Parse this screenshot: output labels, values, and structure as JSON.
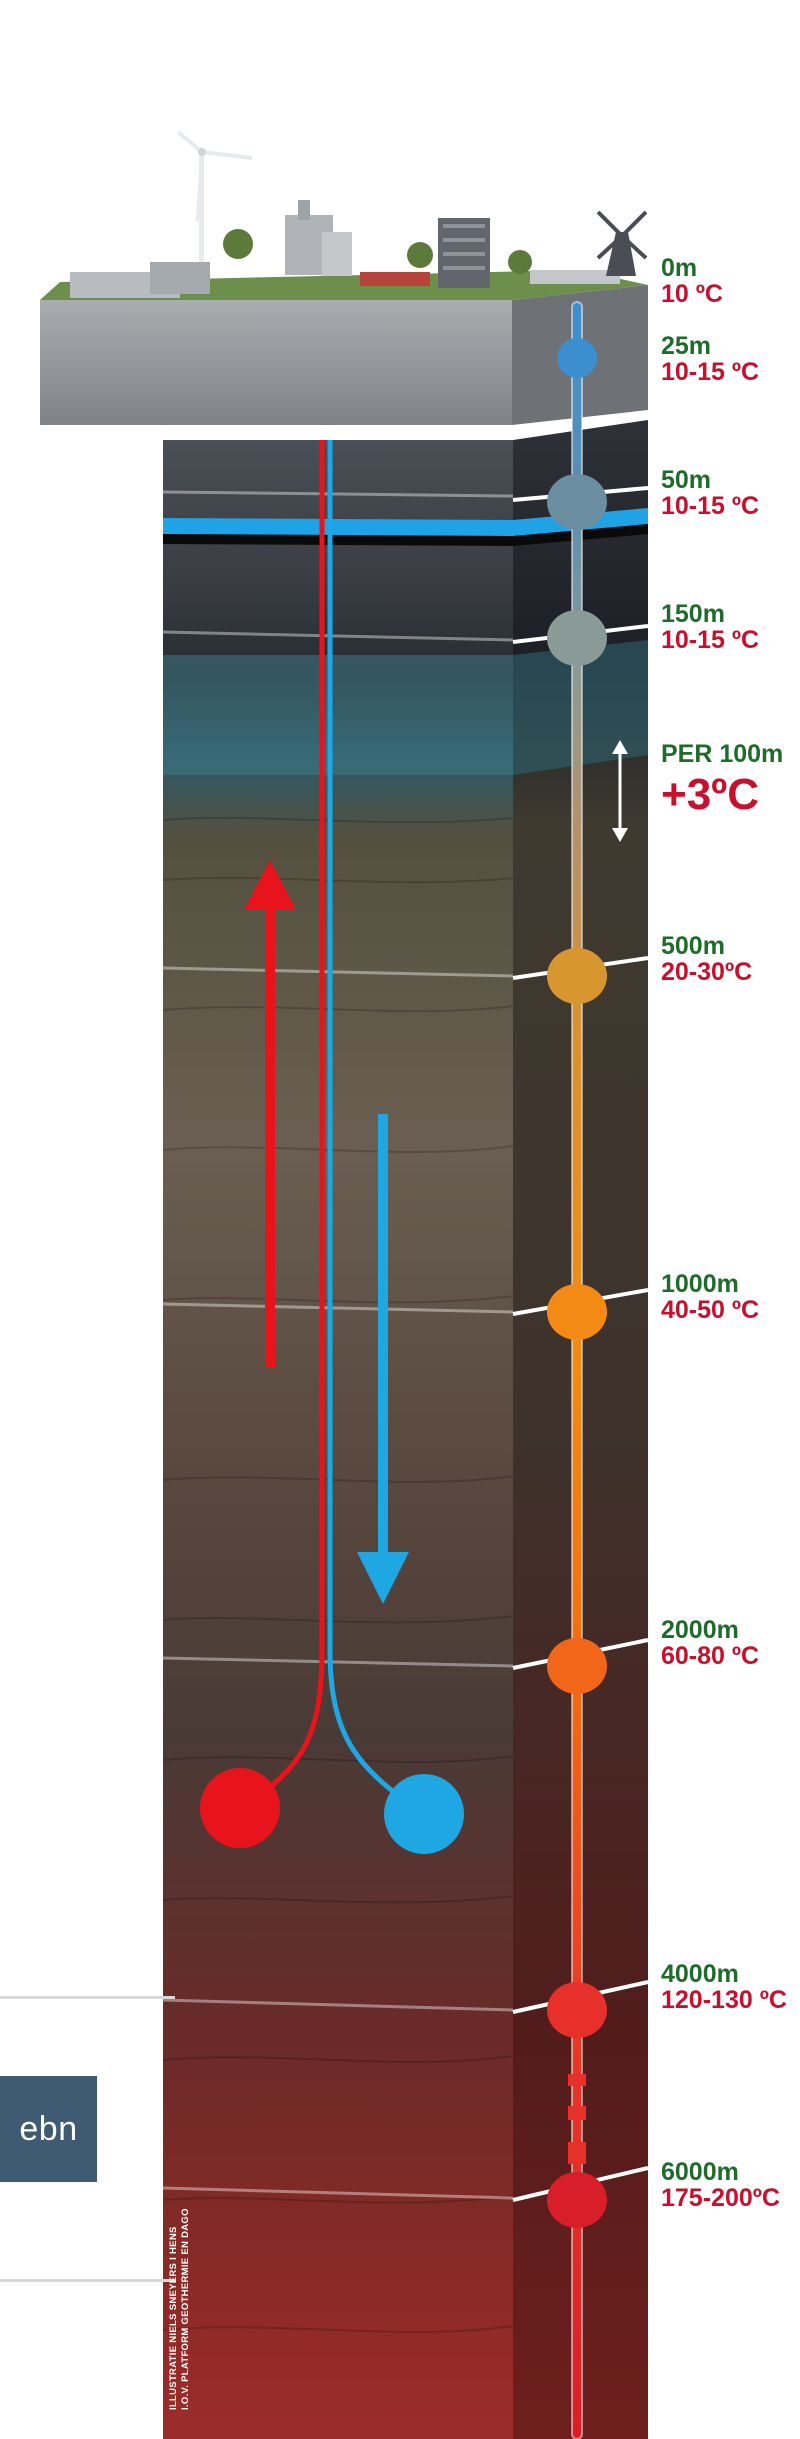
{
  "depth_scale": [
    {
      "depth": "0m",
      "temp": "10 ºC"
    },
    {
      "depth": "25m",
      "temp": "10-15 ºC"
    },
    {
      "depth": "50m",
      "temp": "10-15 ºC"
    },
    {
      "depth": "150m",
      "temp": "10-15 ºC"
    },
    {
      "depth": "500m",
      "temp": "20-30ºC"
    },
    {
      "depth": "1000m",
      "temp": "40-50 ºC"
    },
    {
      "depth": "2000m",
      "temp": "60-80 ºC"
    },
    {
      "depth": "4000m",
      "temp": "120-130 ºC"
    },
    {
      "depth": "6000m",
      "temp": "175-200ºC"
    }
  ],
  "gradient": {
    "label": "PER 100m",
    "value": "+3ºC"
  },
  "logo": {
    "text": "ebn"
  },
  "credit": {
    "line1": "ILLUSTRATIE NIELS SNEYERS I HENS",
    "line2": "I.O.V. PLATFORM GEOTHERMIE EN DAGO"
  },
  "colors": {
    "depth_text": "#1e6b2a",
    "temp_text": "#c8102e",
    "hot_pipe": "#e8141c",
    "cold_pipe": "#1ea7e3",
    "logo_bg": "#3f5a73"
  },
  "icons": [
    "wind-turbine-icon",
    "windmill-icon",
    "factory-icon",
    "apartment-building-icon",
    "tree-icon"
  ]
}
